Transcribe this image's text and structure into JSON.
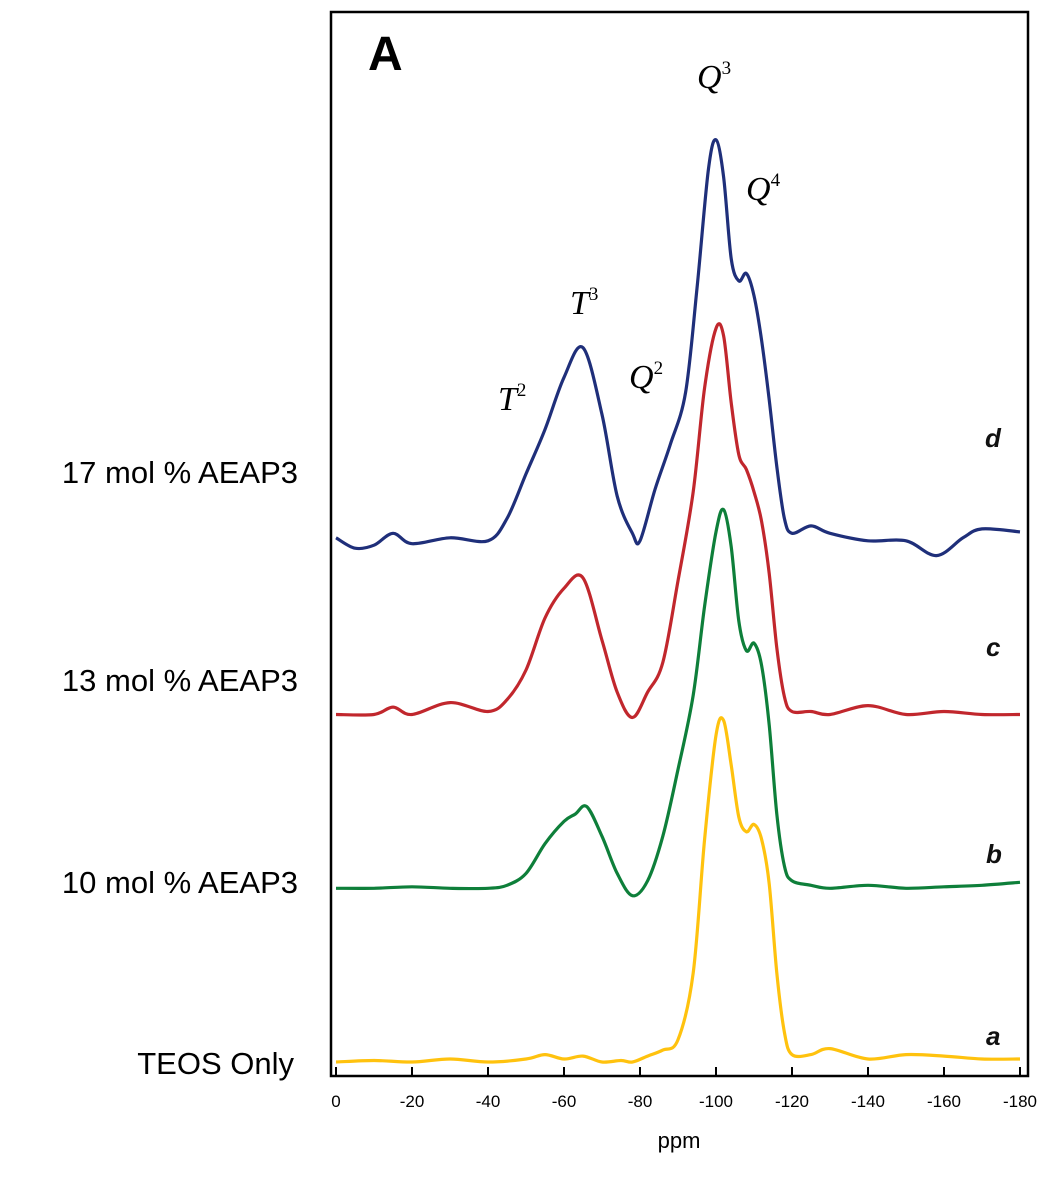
{
  "chart_data": {
    "type": "line",
    "panel_label": "A",
    "xlabel": "ppm",
    "xlim": [
      0,
      -180
    ],
    "x_ticks": [
      0,
      -20,
      -40,
      -60,
      -80,
      -100,
      -120,
      -140,
      -160,
      -180
    ],
    "x_tick_labels": [
      "0",
      "-20",
      "-40",
      "-60",
      "-80",
      "-100",
      "-120",
      "-140",
      "-160",
      "-180"
    ],
    "y_ticks_shown": false,
    "grid": false,
    "peak_labels": [
      {
        "base": "T",
        "sup": "2",
        "ppm": -54
      },
      {
        "base": "T",
        "sup": "3",
        "ppm": -65
      },
      {
        "base": "Q",
        "sup": "2",
        "ppm": -83
      },
      {
        "base": "Q",
        "sup": "3",
        "ppm": -100
      },
      {
        "base": "Q",
        "sup": "4",
        "ppm": -111
      }
    ],
    "series": [
      {
        "name": "TEOS Only",
        "letter": "a",
        "color": "#ffc20e",
        "baseline": 0.0,
        "x": [
          0,
          -10,
          -20,
          -30,
          -40,
          -50,
          -55,
          -60,
          -65,
          -70,
          -75,
          -78,
          -82,
          -86,
          -90,
          -94,
          -97,
          -100,
          -102,
          -104,
          -106,
          -108,
          -110,
          -112,
          -114,
          -116,
          -118,
          -120,
          -125,
          -130,
          -140,
          -150,
          -160,
          -170,
          -180
        ],
        "y": [
          0.0,
          0.01,
          0.0,
          0.02,
          0.0,
          0.02,
          0.05,
          0.02,
          0.04,
          0.0,
          0.01,
          0.0,
          0.04,
          0.08,
          0.15,
          0.6,
          1.5,
          2.2,
          2.3,
          2.0,
          1.65,
          1.55,
          1.6,
          1.5,
          1.2,
          0.6,
          0.2,
          0.05,
          0.05,
          0.09,
          0.02,
          0.05,
          0.04,
          0.02,
          0.02
        ]
      },
      {
        "name": "10 mol % AEAP3",
        "letter": "b",
        "color": "#0e7f3a",
        "baseline": 1.17,
        "x": [
          0,
          -10,
          -20,
          -30,
          -40,
          -45,
          -50,
          -55,
          -60,
          -63,
          -66,
          -70,
          -74,
          -78,
          -82,
          -86,
          -90,
          -94,
          -97,
          -100,
          -102,
          -104,
          -106,
          -108,
          -110,
          -112,
          -114,
          -116,
          -118,
          -120,
          -125,
          -130,
          -140,
          -150,
          -160,
          -170,
          -180
        ],
        "y": [
          0.0,
          0.0,
          0.01,
          0.0,
          0.0,
          0.02,
          0.1,
          0.3,
          0.45,
          0.5,
          0.55,
          0.35,
          0.1,
          -0.05,
          0.05,
          0.35,
          0.8,
          1.3,
          1.9,
          2.4,
          2.55,
          2.3,
          1.8,
          1.6,
          1.65,
          1.5,
          1.1,
          0.5,
          0.15,
          0.05,
          0.02,
          0.0,
          0.02,
          0.0,
          0.01,
          0.02,
          0.04
        ]
      },
      {
        "name": "13 mol % AEAP3",
        "letter": "c",
        "color": "#c1272d",
        "baseline": 2.34,
        "x": [
          0,
          -10,
          -15,
          -20,
          -30,
          -40,
          -45,
          -50,
          -55,
          -60,
          -65,
          -70,
          -74,
          -78,
          -82,
          -86,
          -90,
          -94,
          -97,
          -100,
          -102,
          -104,
          -106,
          -108,
          -110,
          -112,
          -114,
          -116,
          -118,
          -120,
          -125,
          -130,
          -140,
          -150,
          -160,
          -170,
          -180
        ],
        "y": [
          0.0,
          0.0,
          0.05,
          0.0,
          0.08,
          0.02,
          0.1,
          0.3,
          0.65,
          0.85,
          0.92,
          0.5,
          0.15,
          -0.02,
          0.15,
          0.35,
          0.9,
          1.5,
          2.2,
          2.6,
          2.55,
          2.1,
          1.75,
          1.65,
          1.5,
          1.3,
          0.95,
          0.45,
          0.12,
          0.02,
          0.02,
          0.0,
          0.06,
          0.0,
          0.02,
          0.0,
          0.0
        ]
      },
      {
        "name": "17 mol % AEAP3",
        "letter": "d",
        "color": "#1f2f7a",
        "baseline": 3.51,
        "x": [
          0,
          -5,
          -10,
          -15,
          -20,
          -30,
          -40,
          -45,
          -50,
          -55,
          -60,
          -65,
          -70,
          -74,
          -78,
          -80,
          -84,
          -88,
          -92,
          -95,
          -98,
          -100,
          -102,
          -104,
          -106,
          -108,
          -110,
          -112,
          -114,
          -116,
          -118,
          -120,
          -125,
          -130,
          -140,
          -150,
          -158,
          -165,
          -170,
          -180
        ],
        "y": [
          0.02,
          -0.05,
          -0.03,
          0.05,
          -0.02,
          0.02,
          0.0,
          0.15,
          0.45,
          0.75,
          1.1,
          1.3,
          0.85,
          0.3,
          0.05,
          0.0,
          0.35,
          0.65,
          1.0,
          1.7,
          2.5,
          2.7,
          2.45,
          1.9,
          1.75,
          1.8,
          1.65,
          1.35,
          0.95,
          0.5,
          0.15,
          0.05,
          0.1,
          0.05,
          0.0,
          0.0,
          -0.1,
          0.02,
          0.08,
          0.06
        ]
      }
    ]
  }
}
